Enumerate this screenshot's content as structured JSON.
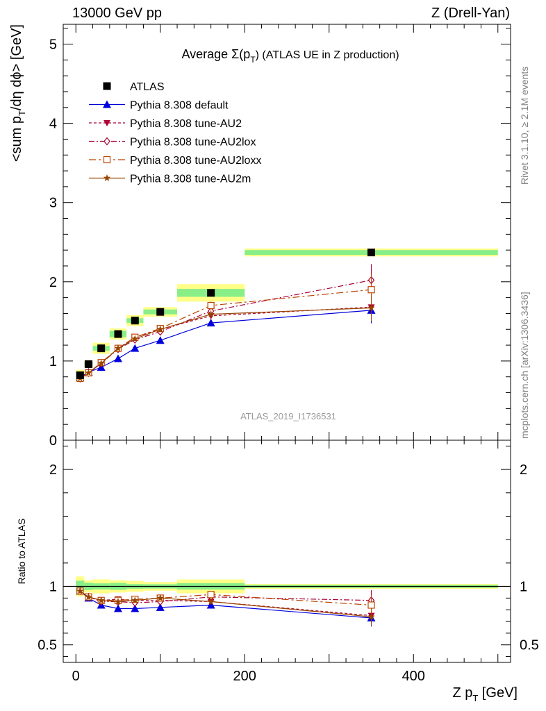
{
  "header": {
    "left": "13000 GeV pp",
    "right": "Z (Drell-Yan)"
  },
  "side_labels": {
    "rivet": "Rivet 3.1.10, ≥ 2.1M events",
    "mcplots": "mcplots.cern.ch [arXiv:1306.3436]"
  },
  "colors": {
    "data": "#000000",
    "default": "#0000dd",
    "au2": "#aa0033",
    "au2lox": "#aa0033",
    "au2loxx": "#bb4400",
    "au2m": "#994400",
    "band_inner": "#88ee88",
    "band_outer": "#ffff88"
  },
  "chart_data": {
    "type": "scatter",
    "title": "Average Σ(p_T) (ATLAS UE in Z production)",
    "title_parts": {
      "pre": "Average ",
      "sym": "Σ(p",
      "sub": "T",
      "post": ") (ATLAS UE in Z production)"
    },
    "analysis_label": "ATLAS_2019_I1736531",
    "xlabel": "Z p_T [GeV]",
    "xlabel_parts": {
      "main": "Z p",
      "sub": "T",
      "unit": " [GeV]"
    },
    "ylabel": "<sum p_T/dη dϕ> [GeV]",
    "ylabel_parts": {
      "pre": "<sum p",
      "sub": "T",
      "post": "/dη dϕ> [GeV]"
    },
    "ratio_ylabel": "Ratio to ATLAS",
    "xlim": [
      -15,
      515
    ],
    "ylim": [
      0,
      5.25
    ],
    "ratio_ylim": [
      0.35,
      2.25
    ],
    "x_ticks": [
      "0",
      "200",
      "400"
    ],
    "y_ticks": [
      "1",
      "2",
      "3",
      "4",
      "5"
    ],
    "y_zero_label": "0",
    "ratio_ticks": [
      "0.5",
      "1",
      "2"
    ],
    "legend_position": "top-left",
    "x_bins": [
      [
        0,
        10
      ],
      [
        10,
        20
      ],
      [
        20,
        40
      ],
      [
        40,
        60
      ],
      [
        60,
        80
      ],
      [
        80,
        120
      ],
      [
        120,
        200
      ],
      [
        200,
        500
      ]
    ],
    "x": [
      5,
      15,
      30,
      50,
      70,
      100,
      160,
      350
    ],
    "data": {
      "name": "ATLAS",
      "values": [
        0.82,
        0.96,
        1.16,
        1.34,
        1.51,
        1.62,
        1.86,
        2.37
      ],
      "band_inner": [
        0.04,
        0.03,
        0.03,
        0.04,
        0.03,
        0.03,
        0.05,
        0.03
      ],
      "band_outer": [
        0.07,
        0.05,
        0.07,
        0.07,
        0.07,
        0.06,
        0.11,
        0.05
      ]
    },
    "series": [
      {
        "name": "Pythia 8.308 default",
        "key": "default",
        "marker": "triangle",
        "dash": "",
        "values": [
          0.79,
          0.86,
          0.92,
          1.03,
          1.16,
          1.26,
          1.48,
          1.64
        ],
        "ratio": [
          0.96,
          0.9,
          0.84,
          0.81,
          0.81,
          0.82,
          0.84,
          0.73
        ],
        "err": [
          0.02,
          0.02,
          0.02,
          0.02,
          0.02,
          0.02,
          0.03,
          0.1
        ]
      },
      {
        "name": "Pythia 8.308 tune-AU2",
        "key": "au2",
        "marker": "triangle-down",
        "dash": "4,3",
        "values": [
          0.78,
          0.85,
          0.97,
          1.16,
          1.3,
          1.4,
          1.57,
          1.68
        ],
        "ratio": [
          0.96,
          0.91,
          0.88,
          0.89,
          0.88,
          0.88,
          0.87,
          0.75
        ],
        "err": [
          0.02,
          0.02,
          0.02,
          0.02,
          0.02,
          0.02,
          0.03,
          0.1
        ]
      },
      {
        "name": "Pythia 8.308 tune-AU2lox",
        "key": "au2lox",
        "marker": "diamond",
        "dash": "8,3,2,3",
        "values": [
          0.78,
          0.85,
          0.97,
          1.15,
          1.27,
          1.37,
          1.63,
          2.02
        ],
        "ratio": [
          0.96,
          0.91,
          0.87,
          0.87,
          0.86,
          0.87,
          0.91,
          0.88
        ],
        "err": [
          0.02,
          0.02,
          0.02,
          0.02,
          0.02,
          0.02,
          0.03,
          0.1
        ]
      },
      {
        "name": "Pythia 8.308 tune-AU2loxx",
        "key": "au2loxx",
        "marker": "square",
        "dash": "10,4,3,4",
        "values": [
          0.78,
          0.85,
          0.98,
          1.16,
          1.3,
          1.41,
          1.7,
          1.9
        ],
        "ratio": [
          0.96,
          0.91,
          0.88,
          0.88,
          0.89,
          0.9,
          0.93,
          0.84
        ],
        "err": [
          0.02,
          0.02,
          0.02,
          0.02,
          0.02,
          0.02,
          0.03,
          0.1
        ]
      },
      {
        "name": "Pythia 8.308 tune-AU2m",
        "key": "au2m",
        "marker": "star",
        "dash": "",
        "values": [
          0.78,
          0.85,
          0.97,
          1.16,
          1.28,
          1.4,
          1.59,
          1.67
        ],
        "ratio": [
          0.96,
          0.91,
          0.88,
          0.87,
          0.88,
          0.9,
          0.87,
          0.74
        ],
        "err": [
          0.02,
          0.02,
          0.02,
          0.02,
          0.02,
          0.02,
          0.03,
          0.1
        ]
      }
    ]
  }
}
